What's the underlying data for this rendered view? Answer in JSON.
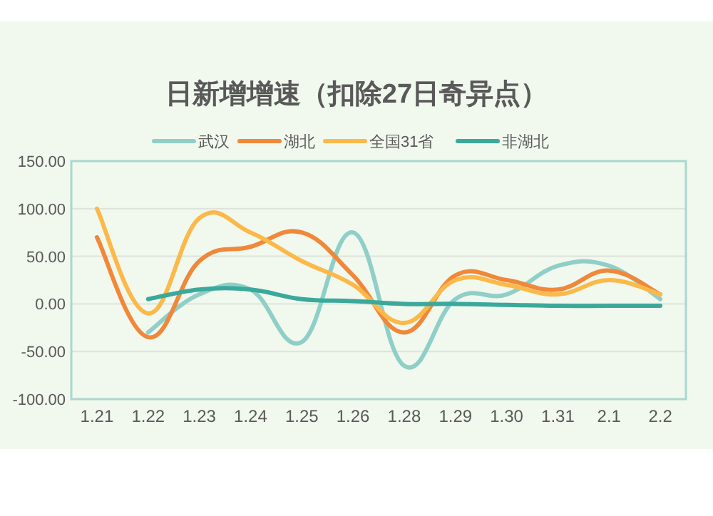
{
  "chart_data": {
    "type": "line",
    "title": "日新增增速（扣除27日奇异点）",
    "categories": [
      "1.21",
      "1.22",
      "1.23",
      "1.24",
      "1.25",
      "1.26",
      "1.28",
      "1.29",
      "1.30",
      "1.31",
      "2.1",
      "2.2"
    ],
    "series": [
      {
        "name": "武汉",
        "color": "#8fcfc8",
        "values": [
          null,
          -30,
          10,
          15,
          -40,
          75,
          -65,
          5,
          10,
          40,
          40,
          5
        ]
      },
      {
        "name": "湖北",
        "color": "#f0883a",
        "values": [
          70,
          -35,
          45,
          60,
          75,
          30,
          -30,
          30,
          25,
          15,
          35,
          10
        ]
      },
      {
        "name": "全国31省",
        "color": "#fbb94a",
        "values": [
          100,
          -10,
          90,
          75,
          45,
          20,
          -20,
          25,
          20,
          10,
          25,
          10
        ]
      },
      {
        "name": "非湖北",
        "color": "#3aa99c",
        "values": [
          null,
          5,
          15,
          15,
          5,
          3,
          0,
          0,
          -1,
          -2,
          -2,
          -2
        ]
      }
    ],
    "ylim": [
      -100,
      150
    ],
    "yticks": [
      {
        "value": -100,
        "label": "-100.00"
      },
      {
        "value": -50,
        "label": "-50.00"
      },
      {
        "value": 0,
        "label": "0.00"
      },
      {
        "value": 50,
        "label": "50.00"
      },
      {
        "value": 100,
        "label": "100.00"
      },
      {
        "value": 150,
        "label": "150.00"
      }
    ],
    "grid": "y",
    "legend": "top"
  }
}
